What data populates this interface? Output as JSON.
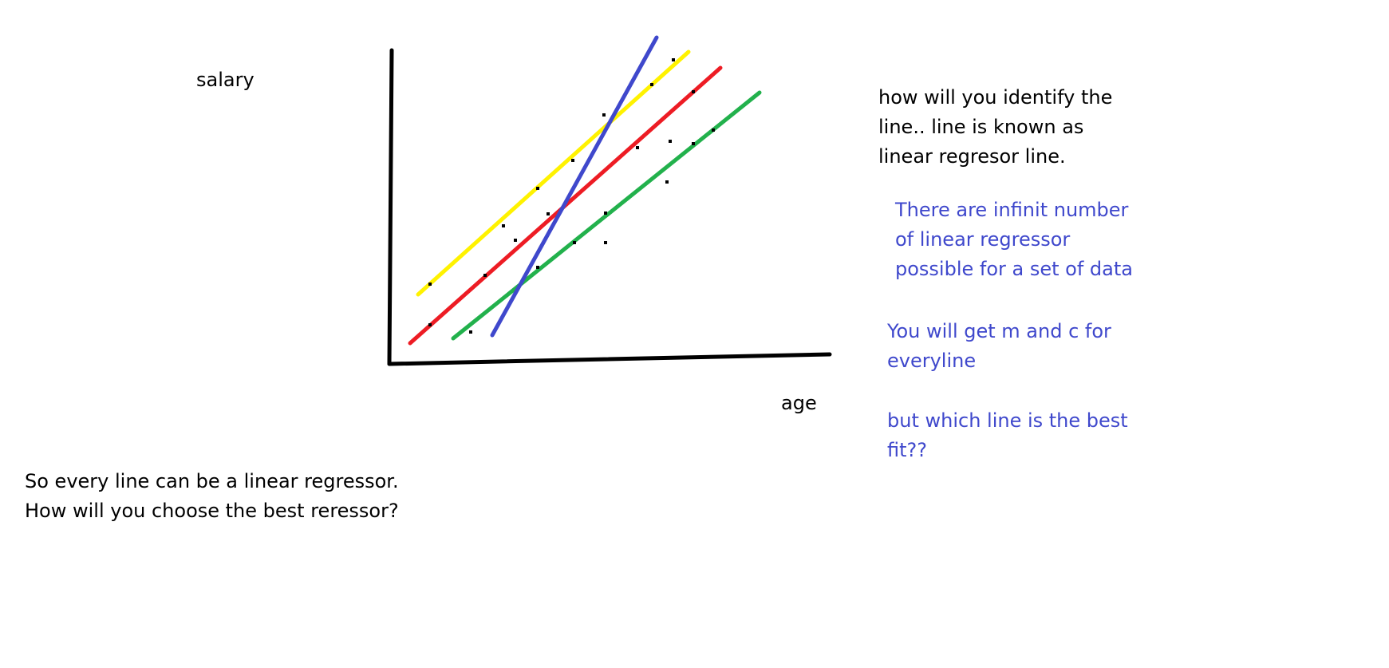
{
  "axes": {
    "y_label": "salary",
    "x_label": "age"
  },
  "note_top_right": [
    "how will you identify the",
    "line.. line is known as",
    "linear regresor line."
  ],
  "note_infinite": [
    "There are infinit number",
    "of linear regressor",
    "possible for a set of data"
  ],
  "note_m_c": [
    "You will get m and c for",
    "everyline"
  ],
  "note_best_fit": [
    "but which line is the best",
    "fit??"
  ],
  "note_bottom_left": [
    "So every line can be a linear regressor.",
    "How will you choose the best reressor?"
  ],
  "colors": {
    "axis": "#000000",
    "text": "#000000",
    "note_blue": "#3f48cc",
    "yellow_line": "#fff200",
    "red_line": "#ed1c24",
    "green_line": "#22b14c",
    "blue_line": "#3f48cc",
    "data_point": "#000000"
  }
}
